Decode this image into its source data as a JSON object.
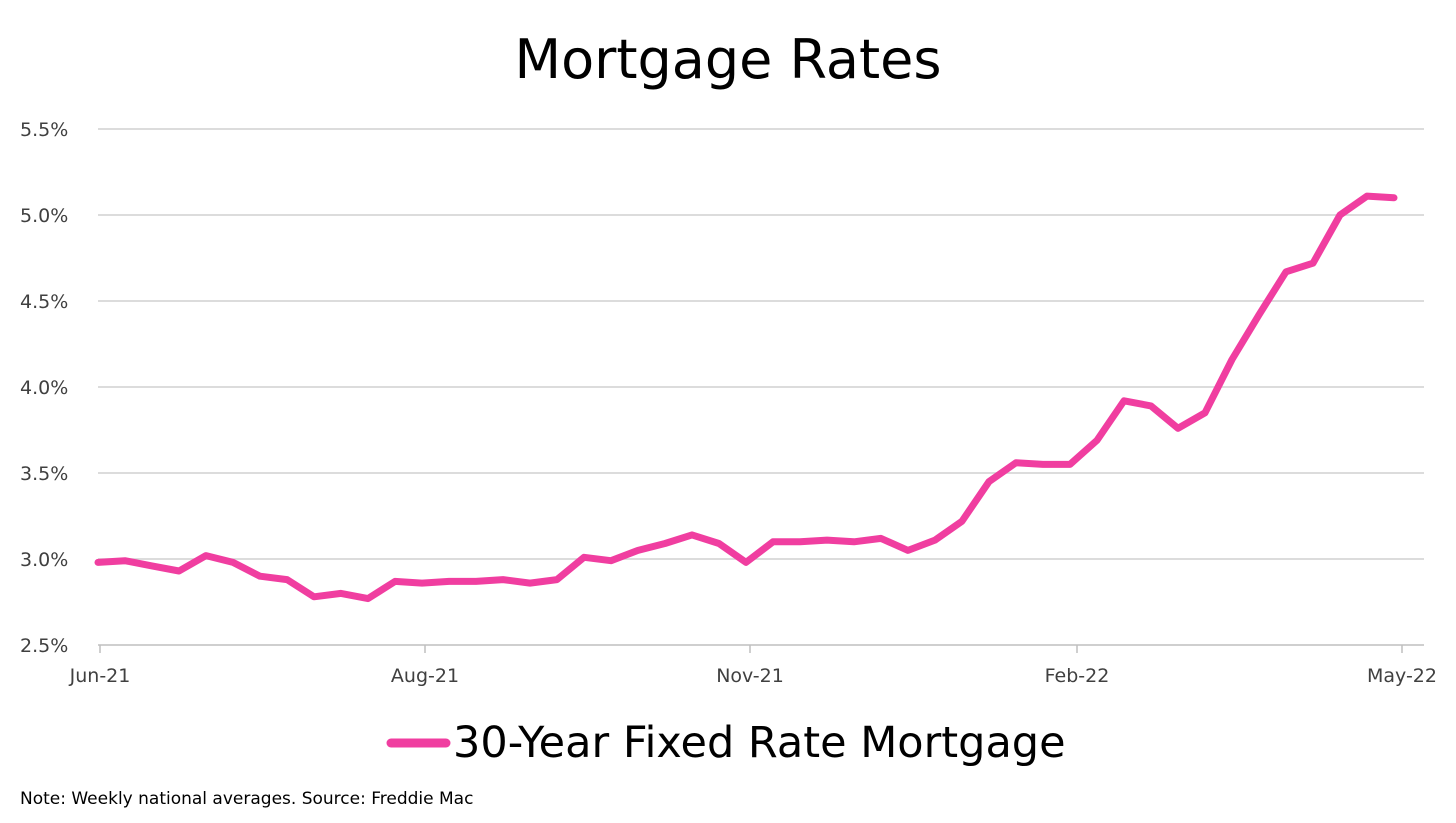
{
  "chart_data": {
    "type": "line",
    "title": "Mortgage Rates",
    "xlabel": "",
    "ylabel": "",
    "x_tick_labels": [
      "Jun-21",
      "Aug-21",
      "Nov-21",
      "Feb-22",
      "May-22"
    ],
    "y_tick_labels": [
      "2.5%",
      "3.0%",
      "3.5%",
      "4.0%",
      "4.5%",
      "5.0%",
      "5.5%"
    ],
    "y_ticks": [
      2.5,
      3.0,
      3.5,
      4.0,
      4.5,
      5.0,
      5.5
    ],
    "ylim": [
      2.5,
      5.5
    ],
    "grid": true,
    "legend_position": "bottom",
    "series": [
      {
        "name": "30-Year Fixed Rate Mortgage",
        "color": "#f03ea0",
        "values": [
          2.98,
          2.99,
          2.96,
          2.93,
          3.02,
          2.98,
          2.9,
          2.88,
          2.78,
          2.8,
          2.77,
          2.87,
          2.86,
          2.87,
          2.87,
          2.88,
          2.86,
          2.88,
          3.01,
          2.99,
          3.05,
          3.09,
          3.14,
          3.09,
          2.98,
          3.1,
          3.1,
          3.11,
          3.1,
          3.12,
          3.05,
          3.11,
          3.22,
          3.45,
          3.56,
          3.55,
          3.55,
          3.69,
          3.92,
          3.89,
          3.76,
          3.85,
          4.16,
          4.42,
          4.67,
          4.72,
          5.0,
          5.11,
          5.1
        ]
      }
    ]
  },
  "note": "Note: Weekly national averages. Source: Freddie Mac"
}
